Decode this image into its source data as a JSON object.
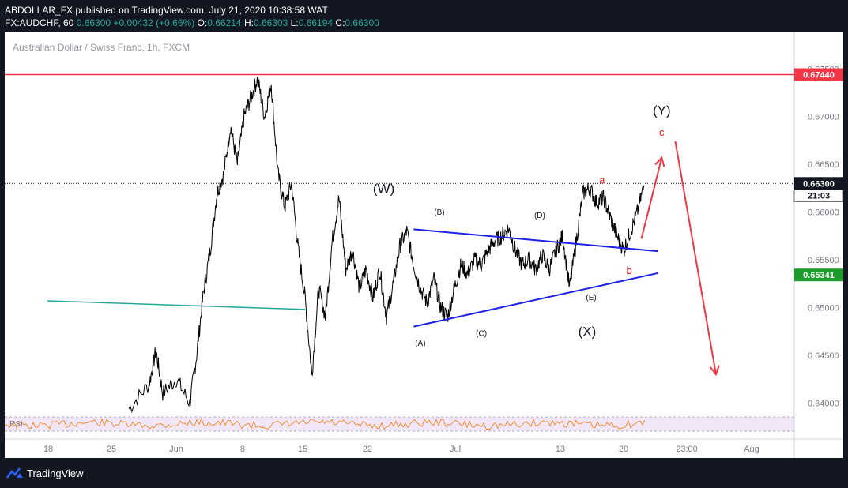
{
  "header": {
    "publisher_line": "ABDOLLAR_FX published on TradingView.com, July 21, 2020 10:38:58 WAT",
    "symbol": "FX:AUDCHF, 60",
    "last": "0.66300",
    "change": "+0.00432 (+0.66%)",
    "o_label": "O:",
    "o_value": "0.66214",
    "h_label": "H:",
    "h_value": "0.66303",
    "l_label": "L:",
    "l_value": "0.66194",
    "c_label": "C:",
    "c_value": "0.66300"
  },
  "chart_title": "Australian Dollar / Swiss Franc, 1h, FXCM",
  "footer": {
    "brand": "TradingView"
  },
  "colors": {
    "background": "#131722",
    "panel": "#ffffff",
    "price_line": "#000000",
    "resistance": "#f23645",
    "wave_label": "#131722",
    "wave_label_red": "#e0211b",
    "triangle": "#1c22e8",
    "trendline": "#26a69a",
    "rsi": "#f57c00",
    "rsi_band": "#e9d5f5",
    "current_badge": "#131722",
    "green_badge": "#1e9c2b"
  },
  "chart_data": {
    "type": "line",
    "instrument": "AUDCHF",
    "timeframe": "1h",
    "x_ticks": [
      "18",
      "25",
      "Jun",
      "8",
      "15",
      "22",
      "Jul",
      "13",
      "20",
      "23:00",
      "Aug"
    ],
    "y_ticks": [
      "0.67500",
      "0.67000",
      "0.66500",
      "0.66000",
      "0.65500",
      "0.65000",
      "0.64500",
      "0.64000"
    ],
    "ylim": [
      0.6392,
      0.6756
    ],
    "price_path": [
      {
        "x": 0.0,
        "y": 0.6394
      },
      {
        "x": 1.5,
        "y": 0.642
      },
      {
        "x": 2.0,
        "y": 0.6455
      },
      {
        "x": 2.5,
        "y": 0.641
      },
      {
        "x": 3.5,
        "y": 0.6425
      },
      {
        "x": 4.5,
        "y": 0.64
      },
      {
        "x": 5.0,
        "y": 0.645
      },
      {
        "x": 5.5,
        "y": 0.6515
      },
      {
        "x": 6.0,
        "y": 0.656
      },
      {
        "x": 6.5,
        "y": 0.662
      },
      {
        "x": 7.0,
        "y": 0.664
      },
      {
        "x": 7.5,
        "y": 0.669
      },
      {
        "x": 8.0,
        "y": 0.665
      },
      {
        "x": 8.5,
        "y": 0.67
      },
      {
        "x": 9.0,
        "y": 0.672
      },
      {
        "x": 9.5,
        "y": 0.674
      },
      {
        "x": 10.0,
        "y": 0.67
      },
      {
        "x": 10.5,
        "y": 0.6735
      },
      {
        "x": 11.0,
        "y": 0.664
      },
      {
        "x": 11.5,
        "y": 0.6605
      },
      {
        "x": 12.0,
        "y": 0.663
      },
      {
        "x": 12.5,
        "y": 0.656
      },
      {
        "x": 13.0,
        "y": 0.651
      },
      {
        "x": 13.5,
        "y": 0.643
      },
      {
        "x": 14.0,
        "y": 0.652
      },
      {
        "x": 14.5,
        "y": 0.649
      },
      {
        "x": 15.0,
        "y": 0.657
      },
      {
        "x": 15.5,
        "y": 0.6615
      },
      {
        "x": 16.0,
        "y": 0.654
      },
      {
        "x": 16.5,
        "y": 0.656
      },
      {
        "x": 17.0,
        "y": 0.652
      },
      {
        "x": 17.5,
        "y": 0.654
      },
      {
        "x": 18.0,
        "y": 0.651
      },
      {
        "x": 18.5,
        "y": 0.654
      },
      {
        "x": 19.0,
        "y": 0.649
      },
      {
        "x": 19.5,
        "y": 0.6525
      },
      {
        "x": 20.0,
        "y": 0.6565
      },
      {
        "x": 20.5,
        "y": 0.658
      },
      {
        "x": 21.0,
        "y": 0.6545
      },
      {
        "x": 21.5,
        "y": 0.652
      },
      {
        "x": 22.0,
        "y": 0.6505
      },
      {
        "x": 22.5,
        "y": 0.653
      },
      {
        "x": 23.0,
        "y": 0.65
      },
      {
        "x": 23.5,
        "y": 0.649
      },
      {
        "x": 24.0,
        "y": 0.652
      },
      {
        "x": 24.5,
        "y": 0.6545
      },
      {
        "x": 25.0,
        "y": 0.6535
      },
      {
        "x": 25.5,
        "y": 0.655
      },
      {
        "x": 26.0,
        "y": 0.6545
      },
      {
        "x": 26.5,
        "y": 0.656
      },
      {
        "x": 27.0,
        "y": 0.657
      },
      {
        "x": 27.5,
        "y": 0.6575
      },
      {
        "x": 28.0,
        "y": 0.6583
      },
      {
        "x": 28.5,
        "y": 0.656
      },
      {
        "x": 29.0,
        "y": 0.6545
      },
      {
        "x": 29.5,
        "y": 0.655
      },
      {
        "x": 30.0,
        "y": 0.654
      },
      {
        "x": 30.5,
        "y": 0.6555
      },
      {
        "x": 31.0,
        "y": 0.654
      },
      {
        "x": 31.5,
        "y": 0.656
      },
      {
        "x": 32.0,
        "y": 0.6575
      },
      {
        "x": 32.5,
        "y": 0.652
      },
      {
        "x": 33.0,
        "y": 0.657
      },
      {
        "x": 33.5,
        "y": 0.662
      },
      {
        "x": 34.0,
        "y": 0.6625
      },
      {
        "x": 34.5,
        "y": 0.661
      },
      {
        "x": 35.0,
        "y": 0.6615
      },
      {
        "x": 35.5,
        "y": 0.6595
      },
      {
        "x": 36.0,
        "y": 0.6575
      },
      {
        "x": 36.5,
        "y": 0.656
      },
      {
        "x": 37.0,
        "y": 0.658
      },
      {
        "x": 37.5,
        "y": 0.66
      },
      {
        "x": 38.0,
        "y": 0.6628
      }
    ],
    "x_span": [
      0,
      38
    ],
    "resistance_level": 0.6744,
    "resistance_label": "0.67440",
    "current_price": 0.663,
    "current_label": "0.66300",
    "countdown": "21:03",
    "support_badge_value": 0.65341,
    "support_badge_label": "0.65341",
    "triangle_upper": [
      {
        "x": 21.0,
        "y": 0.6582
      },
      {
        "x": 39.0,
        "y": 0.6559
      }
    ],
    "triangle_lower": [
      {
        "x": 21.0,
        "y": 0.648
      },
      {
        "x": 39.0,
        "y": 0.6536
      }
    ],
    "old_trendline": [
      {
        "x": -6.0,
        "y": 0.6507
      },
      {
        "x": 13.0,
        "y": 0.6498
      }
    ],
    "projection_up": [
      {
        "x": 37.8,
        "y": 0.6572
      },
      {
        "x": 39.3,
        "y": 0.6657
      }
    ],
    "projection_down": [
      {
        "x": 40.3,
        "y": 0.6674
      },
      {
        "x": 43.3,
        "y": 0.643
      }
    ],
    "wave_labels": [
      {
        "text": "(W)",
        "x": 18.8,
        "y": 0.662,
        "size": "large",
        "color": "dark"
      },
      {
        "text": "(X)",
        "x": 33.8,
        "y": 0.647,
        "size": "large",
        "color": "dark"
      },
      {
        "text": "(Y)",
        "x": 39.3,
        "y": 0.6702,
        "size": "large",
        "color": "dark"
      },
      {
        "text": "(A)",
        "x": 21.5,
        "y": 0.646,
        "size": "small",
        "color": "dark"
      },
      {
        "text": "(B)",
        "x": 22.9,
        "y": 0.6597,
        "size": "small",
        "color": "dark"
      },
      {
        "text": "(C)",
        "x": 26.0,
        "y": 0.647,
        "size": "small",
        "color": "dark"
      },
      {
        "text": "(D)",
        "x": 30.3,
        "y": 0.6594,
        "size": "small",
        "color": "dark"
      },
      {
        "text": "(E)",
        "x": 34.1,
        "y": 0.6508,
        "size": "small",
        "color": "dark"
      },
      {
        "text": "a",
        "x": 34.9,
        "y": 0.663,
        "size": "medium",
        "color": "red"
      },
      {
        "text": "b",
        "x": 36.9,
        "y": 0.6535,
        "size": "medium",
        "color": "red"
      },
      {
        "text": "c",
        "x": 39.3,
        "y": 0.668,
        "size": "medium",
        "color": "red"
      }
    ],
    "rsi_label": "RSI"
  }
}
